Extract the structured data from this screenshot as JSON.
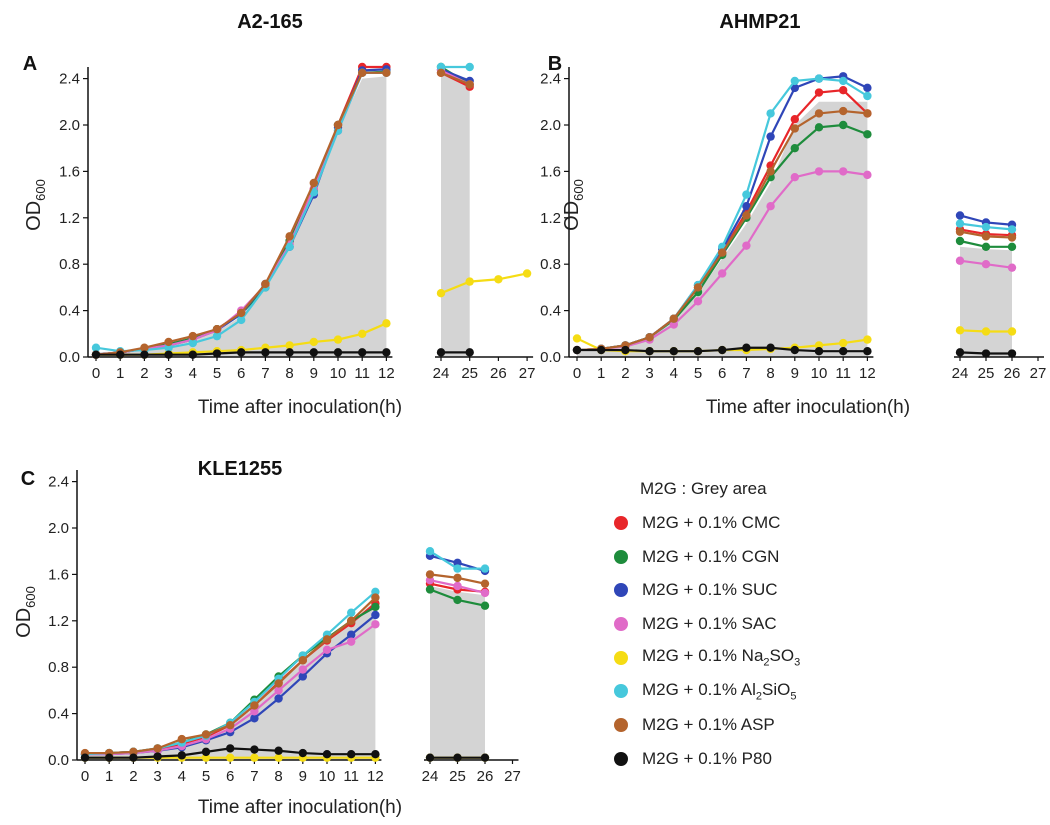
{
  "chart_data": [
    {
      "panel_letter": "A",
      "title": "A2-165",
      "type": "line",
      "ylabel": "OD600",
      "xlabel": "Time after inoculation(h)",
      "x_ticks": [
        "0",
        "1",
        "2",
        "3",
        "4",
        "5",
        "6",
        "7",
        "8",
        "9",
        "10",
        "11",
        "12",
        "24",
        "25",
        "26",
        "27"
      ],
      "y_ticks": [
        "0.0",
        "0.4",
        "0.8",
        "1.2",
        "1.6",
        "2.0",
        "2.4"
      ],
      "ylim": [
        0,
        2.55
      ],
      "x_early": [
        0,
        1,
        2,
        3,
        4,
        5,
        6,
        7,
        8,
        9,
        10,
        11,
        12
      ],
      "x_late": [
        24,
        25,
        26,
        27
      ],
      "grey_area": {
        "early": [
          0.04,
          0.05,
          0.07,
          0.1,
          0.15,
          0.22,
          0.35,
          0.6,
          0.95,
          1.45,
          1.95,
          2.4,
          2.42
        ],
        "late": [
          2.45,
          2.4
        ]
      },
      "series": [
        {
          "name": "M2G + 0.1% CMC",
          "early": [
            0.02,
            0.04,
            0.07,
            0.11,
            0.16,
            0.24,
            0.38,
            0.62,
            1.0,
            1.45,
            2.0,
            2.5,
            2.5
          ],
          "late": [
            2.45,
            2.33
          ]
        },
        {
          "name": "M2G + 0.1% CGN",
          "early": [
            0.02,
            0.04,
            0.07,
            0.11,
            0.16,
            0.24,
            0.37,
            0.6,
            1.0,
            1.43,
            2.0,
            2.45,
            2.46
          ],
          "late": [
            2.5,
            2.35
          ]
        },
        {
          "name": "M2G + 0.1% SUC",
          "early": [
            0.02,
            0.04,
            0.07,
            0.1,
            0.15,
            0.23,
            0.37,
            0.63,
            0.95,
            1.4,
            1.98,
            2.47,
            2.48
          ],
          "late": [
            2.48,
            2.38
          ]
        },
        {
          "name": "M2G + 0.1% SAC",
          "early": [
            0.02,
            0.04,
            0.07,
            0.1,
            0.15,
            0.23,
            0.4,
            0.62,
            0.97,
            1.45,
            1.95,
            2.45,
            2.45
          ],
          "late": [
            2.47,
            2.35
          ]
        },
        {
          "name": "M2G + 0.1% Na2SO3",
          "early": [
            0.02,
            0.02,
            0.02,
            0.03,
            0.04,
            0.05,
            0.06,
            0.08,
            0.1,
            0.13,
            0.15,
            0.2,
            0.29
          ],
          "late": [
            0.55,
            0.65,
            0.67,
            0.72
          ]
        },
        {
          "name": "M2G + 0.1% Al2SiO5",
          "early": [
            0.08,
            0.05,
            0.06,
            0.08,
            0.12,
            0.18,
            0.32,
            0.6,
            0.95,
            1.42,
            1.95,
            2.45,
            2.45
          ],
          "late": [
            2.5,
            2.5
          ]
        },
        {
          "name": "M2G + 0.1% ASP",
          "early": [
            0.02,
            0.04,
            0.08,
            0.13,
            0.18,
            0.24,
            0.38,
            0.63,
            1.04,
            1.5,
            2.0,
            2.45,
            2.45
          ],
          "late": [
            2.45,
            2.35
          ]
        },
        {
          "name": "M2G + 0.1% P80",
          "early": [
            0.02,
            0.02,
            0.02,
            0.02,
            0.02,
            0.03,
            0.04,
            0.04,
            0.04,
            0.04,
            0.04,
            0.04,
            0.04
          ],
          "late": [
            0.04,
            0.04
          ]
        }
      ]
    },
    {
      "panel_letter": "B",
      "title": "AHMP21",
      "type": "line",
      "ylabel": "OD600",
      "xlabel": "Time after inoculation(h)",
      "x_ticks": [
        "0",
        "1",
        "2",
        "3",
        "4",
        "5",
        "6",
        "7",
        "8",
        "9",
        "10",
        "11",
        "12",
        "24",
        "25",
        "26",
        "27"
      ],
      "y_ticks": [
        "0.0",
        "0.4",
        "0.8",
        "1.2",
        "1.6",
        "2.0",
        "2.4"
      ],
      "ylim": [
        0,
        2.55
      ],
      "x_early": [
        0,
        1,
        2,
        3,
        4,
        5,
        6,
        7,
        8,
        9,
        10,
        11,
        12
      ],
      "x_late": [
        24,
        25,
        26,
        27
      ],
      "grey_area": {
        "early": [
          0.06,
          0.07,
          0.1,
          0.17,
          0.32,
          0.55,
          0.85,
          1.15,
          1.5,
          2.0,
          2.2,
          2.2,
          2.2
        ],
        "late": [
          0.95,
          0.93,
          0.92
        ]
      },
      "series": [
        {
          "name": "M2G + 0.1% CMC",
          "early": [
            0.06,
            0.07,
            0.1,
            0.17,
            0.33,
            0.6,
            0.9,
            1.25,
            1.65,
            2.05,
            2.28,
            2.3,
            2.1
          ],
          "late": [
            1.1,
            1.06,
            1.05
          ]
        },
        {
          "name": "M2G + 0.1% CGN",
          "early": [
            0.06,
            0.07,
            0.1,
            0.17,
            0.32,
            0.56,
            0.88,
            1.2,
            1.55,
            1.8,
            1.98,
            2.0,
            1.92
          ],
          "late": [
            1.0,
            0.95,
            0.95
          ]
        },
        {
          "name": "M2G + 0.1% SUC",
          "early": [
            0.06,
            0.07,
            0.1,
            0.17,
            0.33,
            0.62,
            0.93,
            1.3,
            1.9,
            2.32,
            2.4,
            2.42,
            2.32
          ],
          "late": [
            1.22,
            1.16,
            1.14
          ]
        },
        {
          "name": "M2G + 0.1% SAC",
          "early": [
            0.06,
            0.07,
            0.09,
            0.15,
            0.28,
            0.48,
            0.72,
            0.96,
            1.3,
            1.55,
            1.6,
            1.6,
            1.57
          ],
          "late": [
            0.83,
            0.8,
            0.77
          ]
        },
        {
          "name": "M2G + 0.1% Na2SO3",
          "early": [
            0.16,
            0.06,
            0.05,
            0.05,
            0.05,
            0.05,
            0.06,
            0.06,
            0.07,
            0.08,
            0.1,
            0.12,
            0.15
          ],
          "late": [
            0.23,
            0.22,
            0.22
          ]
        },
        {
          "name": "M2G + 0.1% Al2SiO5",
          "early": [
            0.06,
            0.07,
            0.1,
            0.17,
            0.33,
            0.62,
            0.95,
            1.4,
            2.1,
            2.38,
            2.4,
            2.38,
            2.25
          ],
          "late": [
            1.15,
            1.12,
            1.1
          ]
        },
        {
          "name": "M2G + 0.1% ASP",
          "early": [
            0.06,
            0.07,
            0.1,
            0.17,
            0.33,
            0.6,
            0.9,
            1.22,
            1.6,
            1.97,
            2.1,
            2.12,
            2.1
          ],
          "late": [
            1.08,
            1.04,
            1.03
          ]
        },
        {
          "name": "M2G + 0.1% P80",
          "early": [
            0.06,
            0.06,
            0.06,
            0.05,
            0.05,
            0.05,
            0.06,
            0.08,
            0.08,
            0.06,
            0.05,
            0.05,
            0.05
          ],
          "late": [
            0.04,
            0.03,
            0.03
          ]
        }
      ]
    },
    {
      "panel_letter": "C",
      "title": "KLE1255",
      "type": "line",
      "ylabel": "OD600",
      "xlabel": "Time after inoculation(h)",
      "x_ticks": [
        "0",
        "1",
        "2",
        "3",
        "4",
        "5",
        "6",
        "7",
        "8",
        "9",
        "10",
        "11",
        "12",
        "24",
        "25",
        "26",
        "27"
      ],
      "y_ticks": [
        "0.0",
        "0.4",
        "0.8",
        "1.2",
        "1.6",
        "2.0",
        "2.4"
      ],
      "ylim": [
        0,
        2.55
      ],
      "x_early": [
        0,
        1,
        2,
        3,
        4,
        5,
        6,
        7,
        8,
        9,
        10,
        11,
        12
      ],
      "x_late": [
        24,
        25,
        26,
        27
      ],
      "grey_area": {
        "early": [
          0.06,
          0.06,
          0.07,
          0.09,
          0.13,
          0.2,
          0.3,
          0.45,
          0.65,
          0.85,
          1.02,
          1.18,
          1.38
        ],
        "late": [
          1.5,
          1.45,
          1.42
        ]
      },
      "series": [
        {
          "name": "M2G + 0.1% CMC",
          "early": [
            0.05,
            0.06,
            0.07,
            0.09,
            0.14,
            0.2,
            0.3,
            0.47,
            0.67,
            0.86,
            1.03,
            1.18,
            1.35
          ],
          "late": [
            1.52,
            1.47,
            1.45
          ]
        },
        {
          "name": "M2G + 0.1% CGN",
          "early": [
            0.05,
            0.06,
            0.07,
            0.1,
            0.15,
            0.22,
            0.32,
            0.52,
            0.72,
            0.9,
            1.05,
            1.2,
            1.32
          ],
          "late": [
            1.47,
            1.38,
            1.33
          ]
        },
        {
          "name": "M2G + 0.1% SUC",
          "early": [
            0.05,
            0.05,
            0.06,
            0.08,
            0.11,
            0.17,
            0.24,
            0.36,
            0.53,
            0.72,
            0.92,
            1.08,
            1.25
          ],
          "late": [
            1.76,
            1.7,
            1.63
          ]
        },
        {
          "name": "M2G + 0.1% SAC",
          "early": [
            0.05,
            0.05,
            0.06,
            0.08,
            0.12,
            0.18,
            0.27,
            0.42,
            0.6,
            0.78,
            0.95,
            1.02,
            1.17
          ],
          "late": [
            1.55,
            1.5,
            1.44
          ]
        },
        {
          "name": "M2G + 0.1% Na2SO3",
          "early": [
            0.02,
            0.02,
            0.02,
            0.02,
            0.02,
            0.02,
            0.02,
            0.02,
            0.02,
            0.02,
            0.02,
            0.02,
            0.02
          ],
          "late": [
            0.02,
            0.02,
            0.02
          ]
        },
        {
          "name": "M2G + 0.1% Al2SiO5",
          "early": [
            0.05,
            0.06,
            0.07,
            0.1,
            0.15,
            0.21,
            0.32,
            0.5,
            0.7,
            0.9,
            1.08,
            1.27,
            1.45
          ],
          "late": [
            1.8,
            1.65,
            1.65
          ]
        },
        {
          "name": "M2G + 0.1% ASP",
          "early": [
            0.06,
            0.06,
            0.07,
            0.1,
            0.18,
            0.22,
            0.3,
            0.47,
            0.66,
            0.86,
            1.04,
            1.2,
            1.4
          ],
          "late": [
            1.6,
            1.57,
            1.52
          ]
        },
        {
          "name": "M2G + 0.1% P80",
          "early": [
            0.02,
            0.02,
            0.02,
            0.03,
            0.04,
            0.07,
            0.1,
            0.09,
            0.08,
            0.06,
            0.05,
            0.05,
            0.05
          ],
          "late": [
            0.02,
            0.02,
            0.02
          ]
        }
      ]
    }
  ],
  "legend": {
    "title": "M2G : Grey area",
    "items": [
      {
        "prefix": "M2G + 0.1% CMC",
        "main": "",
        "sub1": "",
        "mid": "",
        "sub2": "",
        "color": "#e8262a"
      },
      {
        "prefix": "M2G + 0.1% CGN",
        "main": "",
        "sub1": "",
        "mid": "",
        "sub2": "",
        "color": "#1e8c3c"
      },
      {
        "prefix": "M2G + 0.1% SUC",
        "main": "",
        "sub1": "",
        "mid": "",
        "sub2": "",
        "color": "#2f46b8"
      },
      {
        "prefix": "M2G + 0.1% SAC",
        "main": "",
        "sub1": "",
        "mid": "",
        "sub2": "",
        "color": "#e06bc8"
      },
      {
        "prefix": "M2G + 0.1% ",
        "main": "Na",
        "sub1": "2",
        "mid": "SO",
        "sub2": "3",
        "color": "#f5dc14"
      },
      {
        "prefix": "M2G + 0.1% ",
        "main": "Al",
        "sub1": "2",
        "mid": "SiO",
        "sub2": "5",
        "color": "#46c8dc"
      },
      {
        "prefix": "M2G + 0.1% ASP",
        "main": "",
        "sub1": "",
        "mid": "",
        "sub2": "",
        "color": "#b4642d"
      },
      {
        "prefix": "M2G + 0.1% P80",
        "main": "",
        "sub1": "",
        "mid": "",
        "sub2": "",
        "color": "#111111"
      }
    ]
  }
}
